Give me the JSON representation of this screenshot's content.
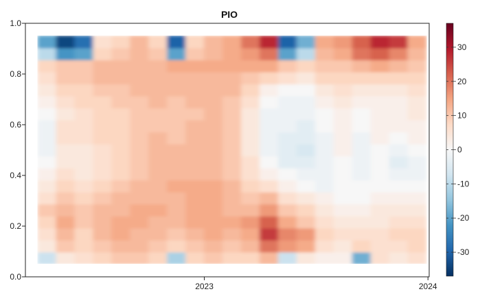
{
  "chart_data": {
    "type": "heatmap",
    "title": "PIO",
    "xlabel": "",
    "ylabel": "",
    "x_start": "2022-03-15",
    "x_end": "2024-01-03",
    "x_ticks": [
      "2023",
      "2024"
    ],
    "x_tick_dates": [
      "2023-01-01",
      "2024-01-01"
    ],
    "ylim": [
      0,
      1
    ],
    "y_ticks": [
      "0.0",
      "0.2",
      "0.4",
      "0.6",
      "0.8",
      "1.0"
    ],
    "y_tick_values": [
      0,
      0.2,
      0.4,
      0.6,
      0.8,
      1.0
    ],
    "data_y_range": [
      0.05,
      0.95
    ],
    "colorbar": {
      "range": [
        -37,
        37
      ],
      "ticks": [
        "30",
        "20",
        "10",
        "0",
        "-10",
        "-20",
        "-30"
      ],
      "tick_values": [
        30,
        20,
        10,
        0,
        -10,
        -20,
        -30
      ],
      "colors": [
        "#053061",
        "#2166ac",
        "#4393c3",
        "#92c5de",
        "#d1e5f0",
        "#f7f7f7",
        "#fddbc7",
        "#f4a582",
        "#d6604d",
        "#b2182b",
        "#67001f"
      ]
    },
    "y_levels": [
      0.05,
      0.1,
      0.15,
      0.2,
      0.25,
      0.3,
      0.35,
      0.4,
      0.45,
      0.5,
      0.55,
      0.6,
      0.65,
      0.7,
      0.75,
      0.8,
      0.85,
      0.9,
      0.95
    ],
    "time_columns": [
      "2022-04",
      "2022-05",
      "2022-06",
      "2022-07",
      "2022-08",
      "2022-09",
      "2022-10",
      "2022-11",
      "2022-12",
      "2023-01",
      "2023-02",
      "2023-03",
      "2023-04",
      "2023-05",
      "2023-06",
      "2023-07",
      "2023-08",
      "2023-09",
      "2023-10",
      "2023-11",
      "2023-12"
    ],
    "values": [
      [
        -8,
        4,
        6,
        8,
        10,
        10,
        8,
        -12,
        8,
        10,
        8,
        8,
        12,
        -8,
        4,
        2,
        2,
        -18,
        6,
        4,
        6
      ],
      [
        4,
        10,
        8,
        10,
        12,
        12,
        10,
        8,
        10,
        12,
        10,
        12,
        20,
        16,
        14,
        6,
        4,
        8,
        6,
        6,
        8
      ],
      [
        6,
        12,
        8,
        12,
        14,
        12,
        12,
        10,
        12,
        14,
        12,
        14,
        26,
        18,
        16,
        8,
        6,
        6,
        6,
        8,
        8
      ],
      [
        8,
        14,
        10,
        12,
        14,
        14,
        12,
        12,
        14,
        14,
        14,
        16,
        22,
        14,
        10,
        6,
        4,
        4,
        4,
        6,
        6
      ],
      [
        10,
        12,
        10,
        12,
        12,
        14,
        14,
        12,
        14,
        14,
        12,
        12,
        16,
        10,
        8,
        4,
        2,
        2,
        4,
        4,
        4
      ],
      [
        6,
        10,
        8,
        10,
        12,
        12,
        12,
        12,
        14,
        14,
        12,
        10,
        12,
        6,
        4,
        2,
        0,
        0,
        2,
        2,
        2
      ],
      [
        4,
        8,
        6,
        8,
        10,
        12,
        12,
        14,
        14,
        14,
        12,
        8,
        6,
        2,
        0,
        -2,
        0,
        0,
        0,
        0,
        0
      ],
      [
        2,
        6,
        4,
        6,
        8,
        10,
        12,
        12,
        12,
        12,
        10,
        6,
        2,
        0,
        -2,
        -2,
        0,
        -2,
        0,
        -2,
        -2
      ],
      [
        0,
        4,
        4,
        6,
        8,
        10,
        12,
        12,
        12,
        12,
        10,
        6,
        0,
        -4,
        -4,
        -2,
        0,
        -2,
        0,
        -4,
        -2
      ],
      [
        -2,
        4,
        4,
        6,
        8,
        10,
        12,
        12,
        12,
        12,
        10,
        4,
        -2,
        -4,
        -6,
        -2,
        2,
        -2,
        0,
        -2,
        0
      ],
      [
        -2,
        6,
        6,
        8,
        8,
        10,
        12,
        10,
        12,
        12,
        10,
        4,
        -2,
        -4,
        -4,
        -2,
        2,
        -2,
        2,
        0,
        2
      ],
      [
        -2,
        6,
        6,
        8,
        8,
        10,
        10,
        10,
        12,
        12,
        10,
        4,
        -2,
        -2,
        -4,
        0,
        2,
        0,
        2,
        2,
        2
      ],
      [
        0,
        4,
        6,
        8,
        8,
        10,
        10,
        10,
        10,
        12,
        10,
        4,
        -2,
        -2,
        -2,
        0,
        2,
        0,
        2,
        2,
        4
      ],
      [
        2,
        6,
        8,
        8,
        10,
        10,
        12,
        10,
        12,
        12,
        10,
        6,
        0,
        -2,
        -2,
        2,
        4,
        2,
        2,
        2,
        4
      ],
      [
        4,
        8,
        8,
        10,
        10,
        12,
        12,
        12,
        12,
        12,
        12,
        8,
        2,
        0,
        0,
        4,
        6,
        4,
        4,
        4,
        6
      ],
      [
        6,
        10,
        10,
        12,
        12,
        12,
        12,
        12,
        12,
        12,
        12,
        10,
        8,
        6,
        4,
        8,
        8,
        8,
        8,
        8,
        8
      ],
      [
        8,
        10,
        10,
        12,
        12,
        12,
        12,
        14,
        14,
        14,
        14,
        14,
        14,
        10,
        8,
        10,
        10,
        12,
        14,
        12,
        10
      ],
      [
        -10,
        -22,
        -20,
        8,
        10,
        12,
        10,
        -20,
        10,
        12,
        14,
        16,
        20,
        -20,
        -10,
        12,
        14,
        20,
        22,
        18,
        12
      ],
      [
        -20,
        -34,
        -28,
        6,
        8,
        12,
        8,
        -30,
        8,
        12,
        14,
        20,
        28,
        -30,
        -18,
        14,
        16,
        22,
        28,
        26,
        14
      ]
    ]
  }
}
